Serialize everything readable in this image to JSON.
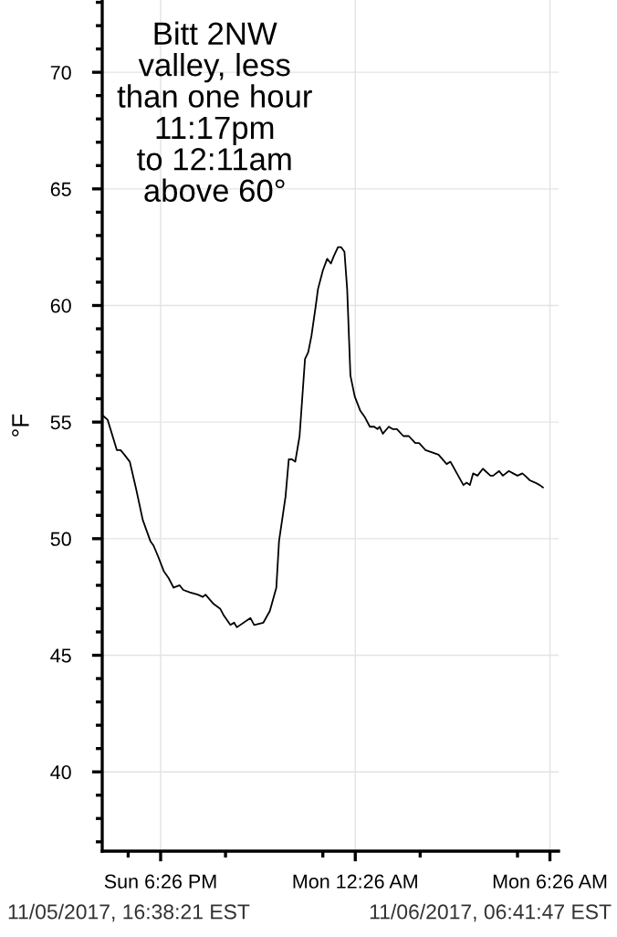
{
  "chart_data": {
    "type": "line",
    "ylabel": "°F",
    "annotations": [
      "Bitt 2NW\nvalley, less\nthan one hour\n11:17pm\nto 12:11am\nabove 60°",
      "11/05/2017, 16:38:21 EST",
      "11/06/2017, 06:41:47 EST"
    ],
    "series": [
      {
        "color": "#000000",
        "x": [
          "2017-11-05T16:38",
          "2017-11-05T16:48",
          "2017-11-05T17:05",
          "2017-11-05T17:12",
          "2017-11-05T17:19",
          "2017-11-05T17:29",
          "2017-11-05T17:41",
          "2017-11-05T17:53",
          "2017-11-05T18:07",
          "2017-11-05T18:13",
          "2017-11-05T18:22",
          "2017-11-05T18:32",
          "2017-11-05T18:41",
          "2017-11-05T18:50",
          "2017-11-05T19:01",
          "2017-11-05T19:08",
          "2017-11-05T19:20",
          "2017-11-05T19:35",
          "2017-11-05T19:44",
          "2017-11-05T19:49",
          "2017-11-05T20:04",
          "2017-11-05T20:16",
          "2017-11-05T20:23",
          "2017-11-05T20:35",
          "2017-11-05T20:42",
          "2017-11-05T20:47",
          "2017-11-05T21:12",
          "2017-11-05T21:19",
          "2017-11-05T21:36",
          "2017-11-05T21:48",
          "2017-11-05T22:00",
          "2017-11-05T22:05",
          "2017-11-05T22:17",
          "2017-11-05T22:23",
          "2017-11-05T22:29",
          "2017-11-05T22:35",
          "2017-11-05T22:43",
          "2017-11-05T22:53",
          "2017-11-05T22:59",
          "2017-11-05T23:05",
          "2017-11-05T23:13",
          "2017-11-05T23:17",
          "2017-11-05T23:26",
          "2017-11-05T23:34",
          "2017-11-05T23:41",
          "2017-11-05T23:46",
          "2017-11-05T23:54",
          "2017-11-06T00:00",
          "2017-11-06T00:06",
          "2017-11-06T00:11",
          "2017-11-06T00:17",
          "2017-11-06T00:25",
          "2017-11-06T00:35",
          "2017-11-06T00:44",
          "2017-11-06T00:53",
          "2017-11-06T01:01",
          "2017-11-06T01:07",
          "2017-11-06T01:11",
          "2017-11-06T01:17",
          "2017-11-06T01:28",
          "2017-11-06T01:35",
          "2017-11-06T01:43",
          "2017-11-06T01:55",
          "2017-11-06T02:05",
          "2017-11-06T02:17",
          "2017-11-06T02:24",
          "2017-11-06T02:36",
          "2017-11-06T02:48",
          "2017-11-06T03:00",
          "2017-11-06T03:15",
          "2017-11-06T03:22",
          "2017-11-06T03:34",
          "2017-11-06T03:46",
          "2017-11-06T03:52",
          "2017-11-06T03:58",
          "2017-11-06T04:04",
          "2017-11-06T04:12",
          "2017-11-06T04:22",
          "2017-11-06T04:36",
          "2017-11-06T04:41",
          "2017-11-06T04:52",
          "2017-11-06T04:59",
          "2017-11-06T05:10",
          "2017-11-06T05:18",
          "2017-11-06T05:26",
          "2017-11-06T05:35",
          "2017-11-06T05:40",
          "2017-11-06T05:49",
          "2017-11-06T05:59",
          "2017-11-06T06:07",
          "2017-11-06T06:13"
        ],
        "values": [
          55.3,
          55.1,
          53.8,
          53.8,
          53.6,
          53.3,
          52.1,
          50.8,
          49.9,
          49.7,
          49.2,
          48.6,
          48.3,
          47.9,
          48.0,
          47.8,
          47.7,
          47.6,
          47.5,
          47.6,
          47.2,
          47.0,
          46.7,
          46.3,
          46.4,
          46.2,
          46.6,
          46.3,
          46.4,
          46.9,
          47.9,
          49.9,
          51.8,
          53.4,
          53.4,
          53.3,
          54.4,
          57.7,
          58.0,
          58.7,
          60.0,
          60.7,
          61.5,
          62.0,
          61.8,
          62.1,
          62.5,
          62.5,
          62.3,
          60.7,
          57.0,
          56.1,
          55.5,
          55.2,
          54.8,
          54.8,
          54.7,
          54.8,
          54.5,
          54.8,
          54.7,
          54.7,
          54.4,
          54.4,
          54.1,
          54.1,
          53.8,
          53.7,
          53.6,
          53.2,
          53.3,
          52.8,
          52.3,
          52.4,
          52.3,
          52.8,
          52.7,
          53.0,
          52.7,
          52.7,
          52.9,
          52.7,
          52.9,
          52.8,
          52.7,
          52.8,
          52.7,
          52.5,
          52.4,
          52.3,
          52.2
        ]
      }
    ],
    "xlim": [
      "2017-11-05T16:38",
      "2017-11-06T06:42"
    ],
    "xticks": [
      {
        "value": "2017-11-05T17:26",
        "label": null
      },
      {
        "value": "2017-11-05T18:26",
        "label": "Sun 6:26 PM"
      },
      {
        "value": "2017-11-05T20:26",
        "label": null
      },
      {
        "value": "2017-11-05T23:26",
        "label": null
      },
      {
        "value": "2017-11-06T00:26",
        "label": "Mon 12:26 AM"
      },
      {
        "value": "2017-11-06T02:26",
        "label": null
      },
      {
        "value": "2017-11-06T05:26",
        "label": null
      },
      {
        "value": "2017-11-06T06:26",
        "label": "Mon 6:26 AM"
      }
    ],
    "ylim": [
      36.6,
      73.1
    ],
    "yticks": [
      {
        "value": 37,
        "label": null
      },
      {
        "value": 38,
        "label": null
      },
      {
        "value": 39,
        "label": null
      },
      40,
      {
        "value": 41,
        "label": null
      },
      {
        "value": 42,
        "label": null
      },
      {
        "value": 43,
        "label": null
      },
      {
        "value": 44,
        "label": null
      },
      45,
      {
        "value": 46,
        "label": null
      },
      {
        "value": 47,
        "label": null
      },
      {
        "value": 48,
        "label": null
      },
      {
        "value": 49,
        "label": null
      },
      50,
      {
        "value": 51,
        "label": null
      },
      {
        "value": 52,
        "label": null
      },
      {
        "value": 53,
        "label": null
      },
      {
        "value": 54,
        "label": null
      },
      55,
      {
        "value": 56,
        "label": null
      },
      {
        "value": 57,
        "label": null
      },
      {
        "value": 58,
        "label": null
      },
      {
        "value": 59,
        "label": null
      },
      60,
      {
        "value": 61,
        "label": null
      },
      {
        "value": 62,
        "label": null
      },
      {
        "value": 63,
        "label": null
      },
      {
        "value": 64,
        "label": null
      },
      65,
      {
        "value": 66,
        "label": null
      },
      {
        "value": 67,
        "label": null
      },
      {
        "value": 68,
        "label": null
      },
      {
        "value": 69,
        "label": null
      },
      70,
      {
        "value": 71,
        "label": null
      },
      {
        "value": 72,
        "label": null
      },
      {
        "value": 73,
        "label": null
      }
    ],
    "grid": true,
    "marker": "none",
    "line_style": "solid"
  }
}
